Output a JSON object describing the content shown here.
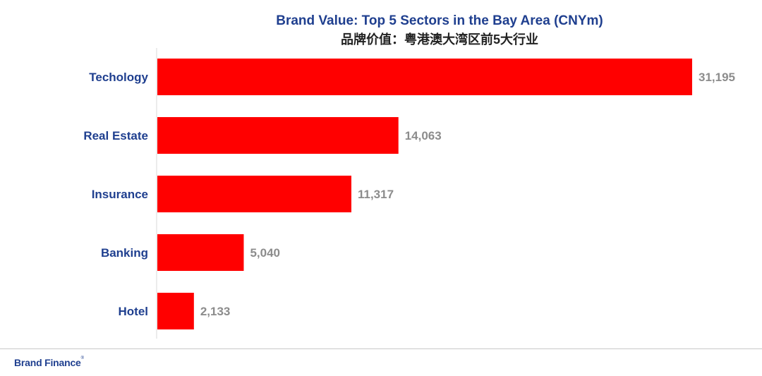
{
  "chart_data": {
    "type": "bar",
    "orientation": "horizontal",
    "title": "Brand Value: Top 5 Sectors in the Bay Area (CNYm)",
    "subtitle": "品牌价值：粤港澳大湾区前5大行业",
    "categories": [
      "Techology",
      "Real Estate",
      "Insurance",
      "Banking",
      "Hotel"
    ],
    "values": [
      31195,
      14063,
      11317,
      5040,
      2133
    ],
    "value_labels": [
      "31,195",
      "14,063",
      "11,317",
      "5,040",
      "2,133"
    ],
    "xlim": [
      0,
      31195
    ],
    "grid": false,
    "legend": "none",
    "bar_color": "#ff0000"
  },
  "footer": {
    "brand": "Brand Finance",
    "mark": "®"
  },
  "colors": {
    "title": "#1f3f8f",
    "subtitle": "#222222",
    "category_label": "#1f3f8f",
    "value_label": "#8c8c8c",
    "bar": "#ff0000",
    "axis": "#d9d9d9"
  }
}
